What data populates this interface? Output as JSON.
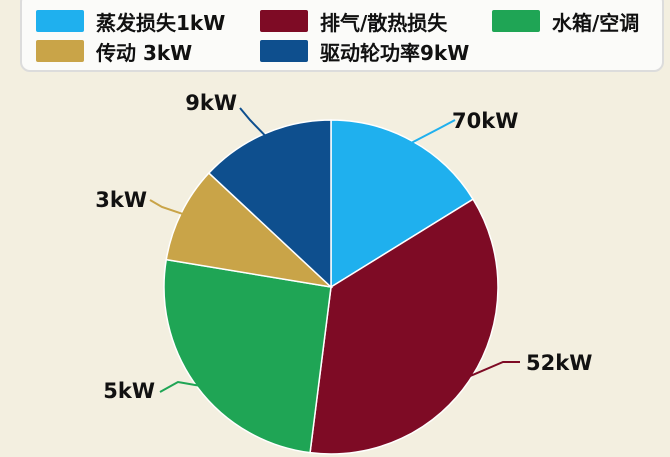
{
  "legend": [
    {
      "label": "蒸发损失1kW",
      "color": "#1fb0ee"
    },
    {
      "label": "排气/散热损失",
      "color": "#7e0b25"
    },
    {
      "label": "水箱/空调",
      "color": "#1fa555"
    },
    {
      "label": "传动 3kW",
      "color": "#c9a448"
    },
    {
      "label": "驱动轮功率9kW",
      "color": "#0e4f8e"
    }
  ],
  "chart_data": {
    "type": "pie",
    "slices": [
      {
        "label": "70kW",
        "value": 17.0,
        "color": "#1fb0ee"
      },
      {
        "label": "52kW",
        "value": 37.6,
        "color": "#7e0b25"
      },
      {
        "label": "5kW",
        "value": 26.9,
        "color": "#1fa555"
      },
      {
        "label": "3kW",
        "value": 9.8,
        "color": "#c9a448"
      },
      {
        "label": "9kW",
        "value": 13.7,
        "color": "#0e4f8e"
      }
    ]
  }
}
